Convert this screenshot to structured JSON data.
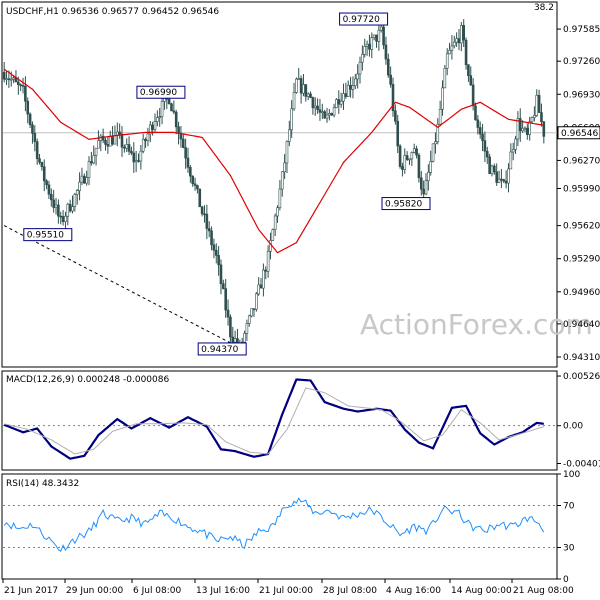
{
  "symbol_header": "USDCHF,H1  0.96536 0.96577 0.96452 0.96546",
  "corner_value": "38.2",
  "watermark": "ActionForex.com",
  "colors": {
    "candle": "#2f4f4f",
    "ma": "#e00000",
    "macd": "#000080",
    "signal": "#b0b0b0",
    "rsi": "#1e90ff",
    "trendline": "#000000",
    "label_border": "#000080"
  },
  "chart_data": [
    {
      "type": "candlestick",
      "price_axis": {
        "ylim": [
          0.9421,
          0.9785
        ],
        "ticks": [
          0.9431,
          0.9464,
          0.9496,
          0.9529,
          0.9562,
          0.9599,
          0.9627,
          0.966,
          0.9693,
          0.9726,
          0.9758
        ],
        "tick_labels": [
          "0.94310",
          "0.94640",
          "0.94960",
          "0.95290",
          "0.95620",
          "0.95990",
          "0.96270",
          "0.96600",
          "0.96930",
          "0.97260",
          "0.97585"
        ]
      },
      "current_price": {
        "value": 0.96546,
        "label": "0.96546"
      },
      "time_labels": [
        "21 Jun 2017",
        "29 Jun 00:00",
        "6 Jul 08:00",
        "13 Jul 16:00",
        "21 Jul 00:00",
        "28 Jul 08:00",
        "4 Aug 16:00",
        "14 Aug 00:00",
        "21 Aug 08:00"
      ],
      "anchors": [
        {
          "i": 0,
          "v": 0.9715
        },
        {
          "i": 8,
          "v": 0.9695
        },
        {
          "i": 16,
          "v": 0.9615
        },
        {
          "i": 24,
          "v": 0.9565
        },
        {
          "i": 32,
          "v": 0.96
        },
        {
          "i": 40,
          "v": 0.9645
        },
        {
          "i": 48,
          "v": 0.965
        },
        {
          "i": 56,
          "v": 0.9625
        },
        {
          "i": 64,
          "v": 0.967
        },
        {
          "i": 70,
          "v": 0.969
        },
        {
          "i": 78,
          "v": 0.9625
        },
        {
          "i": 84,
          "v": 0.9575
        },
        {
          "i": 90,
          "v": 0.953
        },
        {
          "i": 96,
          "v": 0.9455
        },
        {
          "i": 100,
          "v": 0.944
        },
        {
          "i": 106,
          "v": 0.948
        },
        {
          "i": 112,
          "v": 0.953
        },
        {
          "i": 118,
          "v": 0.961
        },
        {
          "i": 124,
          "v": 0.9705
        },
        {
          "i": 130,
          "v": 0.969
        },
        {
          "i": 136,
          "v": 0.9665
        },
        {
          "i": 142,
          "v": 0.969
        },
        {
          "i": 148,
          "v": 0.9705
        },
        {
          "i": 154,
          "v": 0.974
        },
        {
          "i": 160,
          "v": 0.9755
        },
        {
          "i": 164,
          "v": 0.97
        },
        {
          "i": 168,
          "v": 0.962
        },
        {
          "i": 174,
          "v": 0.964
        },
        {
          "i": 178,
          "v": 0.959
        },
        {
          "i": 184,
          "v": 0.966
        },
        {
          "i": 188,
          "v": 0.973
        },
        {
          "i": 194,
          "v": 0.9755
        },
        {
          "i": 200,
          "v": 0.967
        },
        {
          "i": 206,
          "v": 0.962
        },
        {
          "i": 212,
          "v": 0.96
        },
        {
          "i": 218,
          "v": 0.9665
        },
        {
          "i": 222,
          "v": 0.965
        },
        {
          "i": 226,
          "v": 0.9685
        },
        {
          "i": 229,
          "v": 0.9655
        }
      ],
      "ma_anchors": [
        {
          "i": 0,
          "v": 0.9718
        },
        {
          "i": 12,
          "v": 0.9698
        },
        {
          "i": 24,
          "v": 0.9665
        },
        {
          "i": 36,
          "v": 0.9648
        },
        {
          "i": 48,
          "v": 0.9652
        },
        {
          "i": 60,
          "v": 0.9655
        },
        {
          "i": 72,
          "v": 0.9655
        },
        {
          "i": 84,
          "v": 0.965
        },
        {
          "i": 96,
          "v": 0.9612
        },
        {
          "i": 108,
          "v": 0.9558
        },
        {
          "i": 116,
          "v": 0.9535
        },
        {
          "i": 124,
          "v": 0.9545
        },
        {
          "i": 134,
          "v": 0.9585
        },
        {
          "i": 144,
          "v": 0.9625
        },
        {
          "i": 156,
          "v": 0.9655
        },
        {
          "i": 166,
          "v": 0.9685
        },
        {
          "i": 172,
          "v": 0.968
        },
        {
          "i": 184,
          "v": 0.966
        },
        {
          "i": 194,
          "v": 0.9678
        },
        {
          "i": 202,
          "v": 0.9685
        },
        {
          "i": 214,
          "v": 0.9668
        },
        {
          "i": 229,
          "v": 0.9662
        }
      ],
      "annotations": [
        {
          "label": "0.97720",
          "value": 0.9772,
          "i": 161
        },
        {
          "label": "0.96990",
          "value": 0.9699,
          "i": 75
        },
        {
          "label": "0.95510",
          "value": 0.9551,
          "i": 27
        },
        {
          "label": "0.95820",
          "value": 0.9582,
          "i": 179
        },
        {
          "label": "0.94370",
          "value": 0.9437,
          "i": 101
        }
      ],
      "trendline": {
        "from": {
          "i": 0,
          "v": 0.9562
        },
        "to": {
          "i": 101,
          "v": 0.9439
        }
      }
    },
    {
      "type": "line",
      "title": "MACD(12,26,9) 0.000248 -0.000086",
      "ylim": [
        -0.0047,
        0.0058
      ],
      "ticks": [
        0.005266,
        0.0,
        -0.004011
      ],
      "tick_labels": [
        "0.005266",
        "0.00",
        "-0.004011"
      ],
      "series": [
        {
          "role": "macd",
          "anchors": [
            {
              "i": 0,
              "v": 0.0001
            },
            {
              "i": 8,
              "v": -0.0007
            },
            {
              "i": 14,
              "v": -0.0003
            },
            {
              "i": 20,
              "v": -0.0022
            },
            {
              "i": 28,
              "v": -0.0035
            },
            {
              "i": 34,
              "v": -0.0032
            },
            {
              "i": 40,
              "v": -0.001
            },
            {
              "i": 48,
              "v": 0.0007
            },
            {
              "i": 54,
              "v": -0.0003
            },
            {
              "i": 62,
              "v": 0.0008
            },
            {
              "i": 70,
              "v": -0.0002
            },
            {
              "i": 78,
              "v": 0.0009
            },
            {
              "i": 86,
              "v": -0.0001
            },
            {
              "i": 92,
              "v": -0.0025
            },
            {
              "i": 98,
              "v": -0.0027
            },
            {
              "i": 106,
              "v": -0.0033
            },
            {
              "i": 112,
              "v": -0.003
            },
            {
              "i": 118,
              "v": 0.0012
            },
            {
              "i": 124,
              "v": 0.0049
            },
            {
              "i": 130,
              "v": 0.0048
            },
            {
              "i": 136,
              "v": 0.0025
            },
            {
              "i": 144,
              "v": 0.0018
            },
            {
              "i": 150,
              "v": 0.0015
            },
            {
              "i": 158,
              "v": 0.0018
            },
            {
              "i": 164,
              "v": 0.0016
            },
            {
              "i": 170,
              "v": -0.0004
            },
            {
              "i": 176,
              "v": -0.0018
            },
            {
              "i": 182,
              "v": -0.0024
            },
            {
              "i": 190,
              "v": 0.0019
            },
            {
              "i": 196,
              "v": 0.0021
            },
            {
              "i": 202,
              "v": -0.0008
            },
            {
              "i": 208,
              "v": -0.002
            },
            {
              "i": 214,
              "v": -0.0012
            },
            {
              "i": 220,
              "v": -0.0007
            },
            {
              "i": 226,
              "v": 0.0003
            },
            {
              "i": 229,
              "v": 0.0002
            }
          ]
        },
        {
          "role": "signal",
          "anchors": [
            {
              "i": 0,
              "v": 0.0002
            },
            {
              "i": 10,
              "v": -0.0004
            },
            {
              "i": 20,
              "v": -0.0015
            },
            {
              "i": 30,
              "v": -0.003
            },
            {
              "i": 38,
              "v": -0.0025
            },
            {
              "i": 46,
              "v": -0.0006
            },
            {
              "i": 56,
              "v": 0.0002
            },
            {
              "i": 66,
              "v": 0.0002
            },
            {
              "i": 76,
              "v": 0.0003
            },
            {
              "i": 86,
              "v": 0.0001
            },
            {
              "i": 94,
              "v": -0.0017
            },
            {
              "i": 104,
              "v": -0.0028
            },
            {
              "i": 112,
              "v": -0.003
            },
            {
              "i": 120,
              "v": -0.0004
            },
            {
              "i": 128,
              "v": 0.004
            },
            {
              "i": 136,
              "v": 0.0035
            },
            {
              "i": 146,
              "v": 0.0021
            },
            {
              "i": 160,
              "v": 0.0017
            },
            {
              "i": 168,
              "v": 0.0005
            },
            {
              "i": 178,
              "v": -0.0016
            },
            {
              "i": 186,
              "v": -0.001
            },
            {
              "i": 194,
              "v": 0.0017
            },
            {
              "i": 202,
              "v": 0.0003
            },
            {
              "i": 210,
              "v": -0.0015
            },
            {
              "i": 220,
              "v": -0.0008
            },
            {
              "i": 229,
              "v": -0.0001
            }
          ]
        }
      ]
    },
    {
      "type": "line",
      "title": "RSI(14) 48.3432",
      "ylim": [
        0,
        100
      ],
      "ticks": [
        100,
        70,
        30,
        0
      ],
      "tick_labels": [
        "100",
        "70",
        "30",
        "0"
      ],
      "levels": [
        70,
        30
      ],
      "series": [
        {
          "role": "rsi",
          "anchors": [
            {
              "i": 0,
              "v": 55
            },
            {
              "i": 6,
              "v": 48
            },
            {
              "i": 12,
              "v": 52
            },
            {
              "i": 18,
              "v": 40
            },
            {
              "i": 24,
              "v": 28
            },
            {
              "i": 30,
              "v": 38
            },
            {
              "i": 36,
              "v": 45
            },
            {
              "i": 42,
              "v": 62
            },
            {
              "i": 48,
              "v": 55
            },
            {
              "i": 54,
              "v": 58
            },
            {
              "i": 60,
              "v": 52
            },
            {
              "i": 66,
              "v": 62
            },
            {
              "i": 72,
              "v": 58
            },
            {
              "i": 78,
              "v": 50
            },
            {
              "i": 84,
              "v": 45
            },
            {
              "i": 90,
              "v": 36
            },
            {
              "i": 96,
              "v": 40
            },
            {
              "i": 102,
              "v": 32
            },
            {
              "i": 108,
              "v": 45
            },
            {
              "i": 114,
              "v": 50
            },
            {
              "i": 120,
              "v": 72
            },
            {
              "i": 126,
              "v": 75
            },
            {
              "i": 132,
              "v": 63
            },
            {
              "i": 138,
              "v": 65
            },
            {
              "i": 144,
              "v": 58
            },
            {
              "i": 150,
              "v": 62
            },
            {
              "i": 156,
              "v": 66
            },
            {
              "i": 162,
              "v": 55
            },
            {
              "i": 168,
              "v": 42
            },
            {
              "i": 174,
              "v": 50
            },
            {
              "i": 180,
              "v": 46
            },
            {
              "i": 186,
              "v": 66
            },
            {
              "i": 192,
              "v": 64
            },
            {
              "i": 198,
              "v": 50
            },
            {
              "i": 204,
              "v": 46
            },
            {
              "i": 210,
              "v": 52
            },
            {
              "i": 216,
              "v": 50
            },
            {
              "i": 222,
              "v": 58
            },
            {
              "i": 226,
              "v": 55
            },
            {
              "i": 229,
              "v": 48
            }
          ]
        }
      ]
    }
  ]
}
